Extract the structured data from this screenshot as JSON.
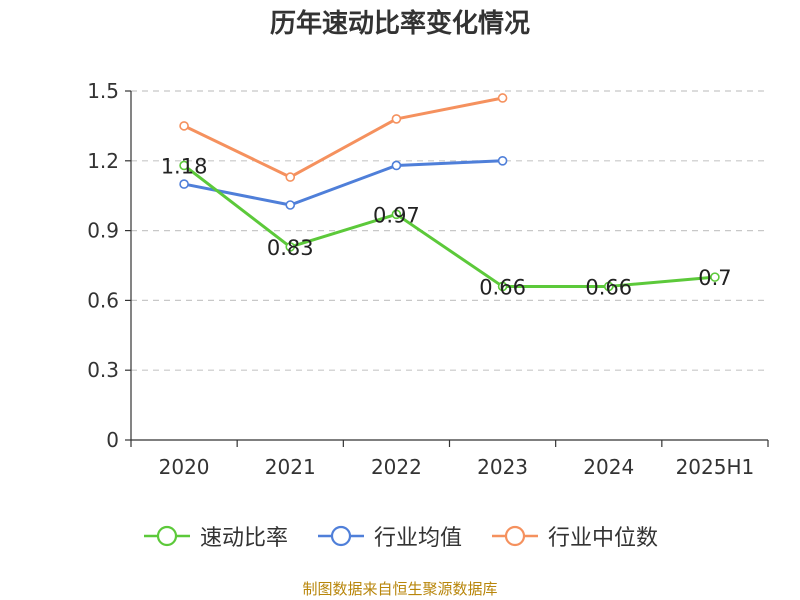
{
  "chart_data": {
    "type": "line",
    "title": "历年速动比率变化情况",
    "categories": [
      "2020",
      "2021",
      "2022",
      "2023",
      "2024",
      "2025H1"
    ],
    "ylim": [
      0,
      1.5
    ],
    "yticks": [
      "0",
      "0.3",
      "0.6",
      "0.9",
      "1.2",
      "1.5"
    ],
    "grid": true,
    "legend_position": "bottom",
    "series": [
      {
        "name": "速动比率",
        "color": "#5cc93a",
        "values": [
          1.18,
          0.83,
          0.97,
          0.66,
          0.66,
          0.7
        ],
        "labels": [
          "1.18",
          "0.83",
          "0.97",
          "0.66",
          "0.66",
          "0.7"
        ],
        "show_labels": true
      },
      {
        "name": "行业均值",
        "color": "#4f7fd9",
        "values": [
          1.1,
          1.01,
          1.18,
          1.2,
          null,
          null
        ],
        "show_labels": false
      },
      {
        "name": "行业中位数",
        "color": "#f5915e",
        "values": [
          1.35,
          1.13,
          1.38,
          1.47,
          null,
          null
        ],
        "show_labels": false
      }
    ]
  },
  "source_note": "制图数据来自恒生聚源数据库"
}
